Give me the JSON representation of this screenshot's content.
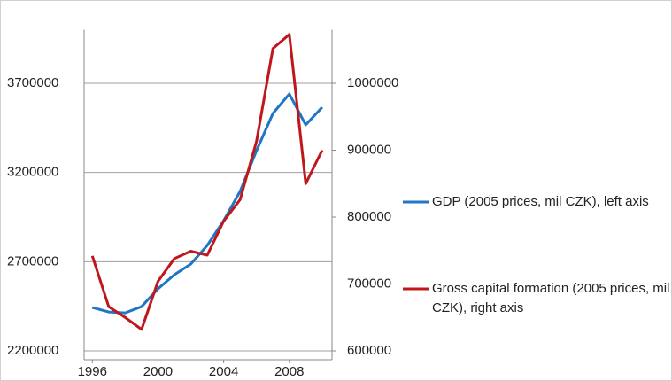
{
  "chart_data": {
    "type": "line",
    "x": [
      1996,
      1997,
      1998,
      1999,
      2000,
      2001,
      2002,
      2003,
      2004,
      2005,
      2006,
      2007,
      2008,
      2009,
      2010
    ],
    "xlim": [
      1995.5,
      2010.6
    ],
    "xticks": [
      1996,
      2000,
      2004,
      2008
    ],
    "ylim": [
      2200000,
      4000000
    ],
    "yticks": [
      2200000,
      2700000,
      3200000,
      3700000
    ],
    "y2lim": [
      600000,
      1080000
    ],
    "y2ticks": [
      600000,
      700000,
      800000,
      900000,
      1000000
    ],
    "grid": true,
    "series": [
      {
        "name": "GDP (2005 prices, mil CZK), left axis",
        "color": "#1f77c4",
        "values": [
          2443000,
          2418000,
          2413000,
          2448000,
          2548000,
          2627000,
          2687000,
          2791000,
          2930000,
          3094000,
          3322000,
          3531000,
          3640000,
          3467000,
          3566000
        ]
      },
      {
        "name": "Gross capital formation (2005 prices, mil CZK), right axis",
        "color": "#c0171c",
        "axis": "y2",
        "values": [
          742000,
          666000,
          650000,
          632000,
          704000,
          738000,
          749000,
          743000,
          794000,
          826000,
          913000,
          1052000,
          1073000,
          850000,
          900000
        ]
      }
    ]
  }
}
